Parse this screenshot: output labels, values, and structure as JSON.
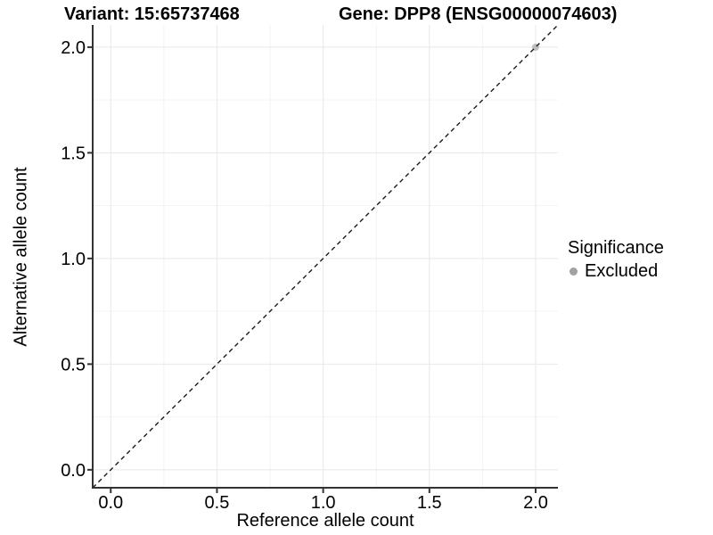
{
  "chart_data": {
    "type": "scatter",
    "title_variant": "Variant: 15:65737468",
    "title_gene": "Gene: DPP8 (ENSG00000074603)",
    "xlabel": "Reference allele count",
    "ylabel": "Alternative allele count",
    "xlim": [
      -0.085,
      2.105
    ],
    "ylim": [
      -0.085,
      2.105
    ],
    "xticks": [
      0,
      0.5,
      1,
      1.5,
      2
    ],
    "yticks": [
      0,
      0.5,
      1,
      1.5,
      2
    ],
    "xtick_labels": [
      "0.0",
      "0.5",
      "1.0",
      "1.5",
      "2.0"
    ],
    "ytick_labels": [
      "0.0",
      "0.5",
      "1.0",
      "1.5",
      "2.0"
    ],
    "minor_step": 0.25,
    "grid": "major+minor",
    "identity_line": {
      "slope": 1,
      "intercept": 0,
      "style": "dashed",
      "color": "#1a1a1a"
    },
    "series": [
      {
        "name": "Excluded",
        "color": "#bfbfbf",
        "points": [
          {
            "x": 2,
            "y": 2
          }
        ]
      }
    ],
    "legend": {
      "title": "Significance",
      "position": "right",
      "items": [
        {
          "label": "Excluded",
          "color": "#a2a2a2"
        }
      ]
    }
  },
  "colors": {
    "grid_major": "#e8e8e8",
    "grid_minor": "#f3f3f3",
    "axis_line": "#333333",
    "text": "#000000"
  }
}
